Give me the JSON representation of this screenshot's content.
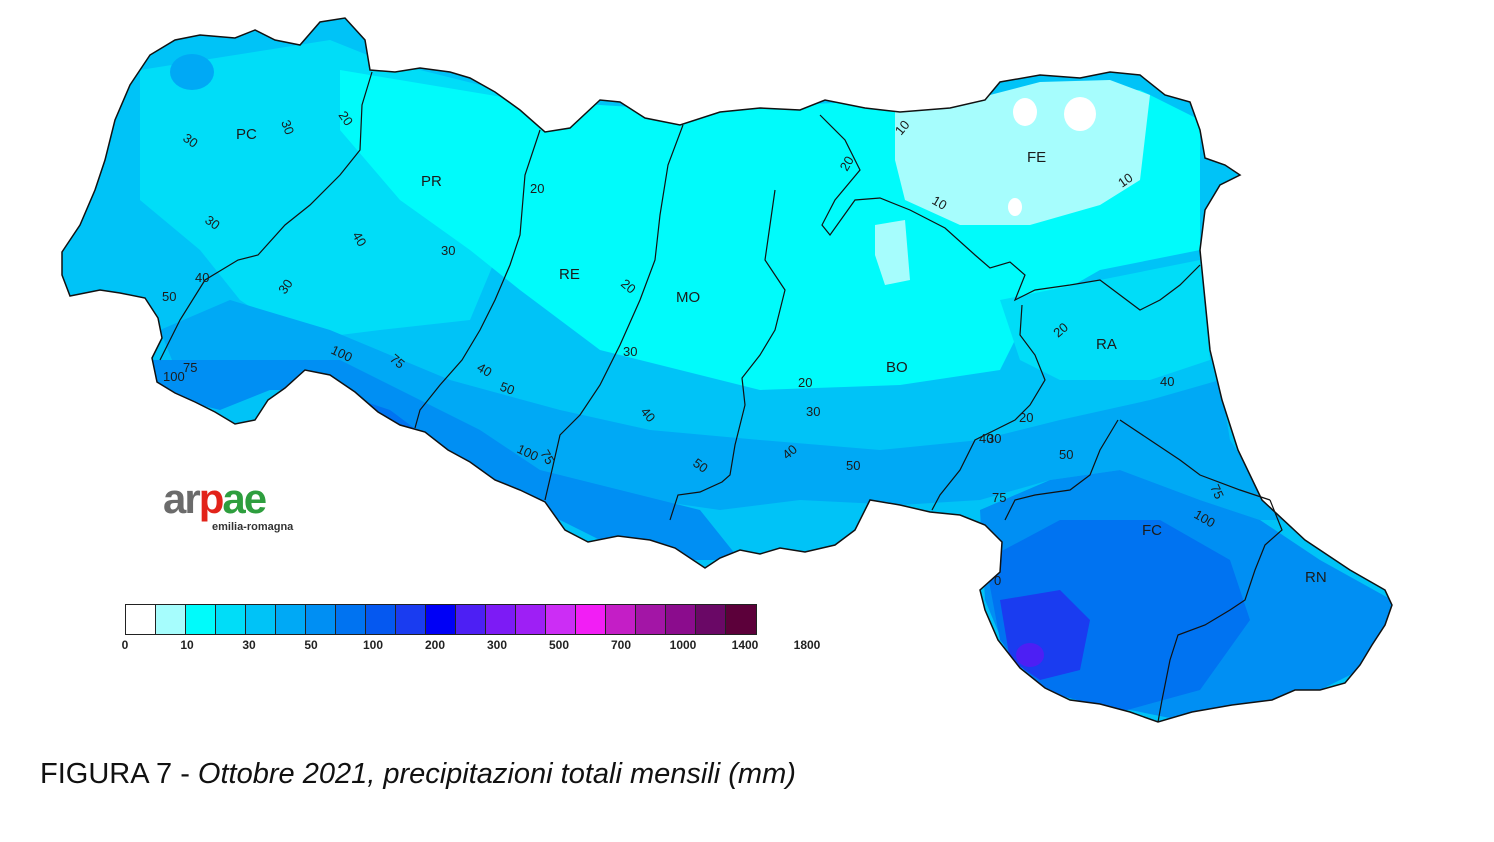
{
  "map": {
    "provinces": [
      {
        "code": "PC"
      },
      {
        "code": "PR"
      },
      {
        "code": "RE"
      },
      {
        "code": "MO"
      },
      {
        "code": "BO"
      },
      {
        "code": "FE"
      },
      {
        "code": "RA"
      },
      {
        "code": "FC"
      },
      {
        "code": "RN"
      }
    ],
    "isoline_labels": [
      "30",
      "30",
      "20",
      "30",
      "40",
      "30",
      "40",
      "50",
      "75",
      "100",
      "100",
      "75",
      "20",
      "30",
      "20",
      "40",
      "50",
      "20",
      "30",
      "40",
      "50",
      "75",
      "100",
      "20",
      "30",
      "40",
      "50",
      "20",
      "10",
      "10",
      "10",
      "20",
      "40",
      "30",
      "40",
      "50",
      "75",
      "100",
      "75",
      "0"
    ],
    "colors": {
      "very_low": "#a6fdfd",
      "low": "#00fbfb",
      "mid_low": "#00ddf8",
      "mid": "#00c3f7",
      "mid_high": "#00a9f5",
      "high": "#008ff3",
      "very_high": "#0073f1",
      "max": "#1a3cf0"
    }
  },
  "logo": {
    "brand": "arpae",
    "region": "emilia-romagna"
  },
  "legend": {
    "colors": [
      "#ffffff",
      "#a6fdfd",
      "#00fbfb",
      "#00ddf8",
      "#00c3f7",
      "#00a9f5",
      "#008ff3",
      "#0073f1",
      "#0558f0",
      "#1a3cf0",
      "#0000f6",
      "#4d1ff4",
      "#7d1bf5",
      "#9e1ff5",
      "#cc2df5",
      "#f21ef5",
      "#c41ec6",
      "#a315a6",
      "#8b0c8d",
      "#6a0866",
      "#5c003a"
    ],
    "labels": [
      "0",
      "10",
      "30",
      "50",
      "100",
      "200",
      "300",
      "500",
      "700",
      "1000",
      "1400",
      "1800"
    ]
  },
  "caption": {
    "prefix": "FIGURA 7 - ",
    "title": "Ottobre 2021, precipitazioni totali mensili (mm)"
  }
}
